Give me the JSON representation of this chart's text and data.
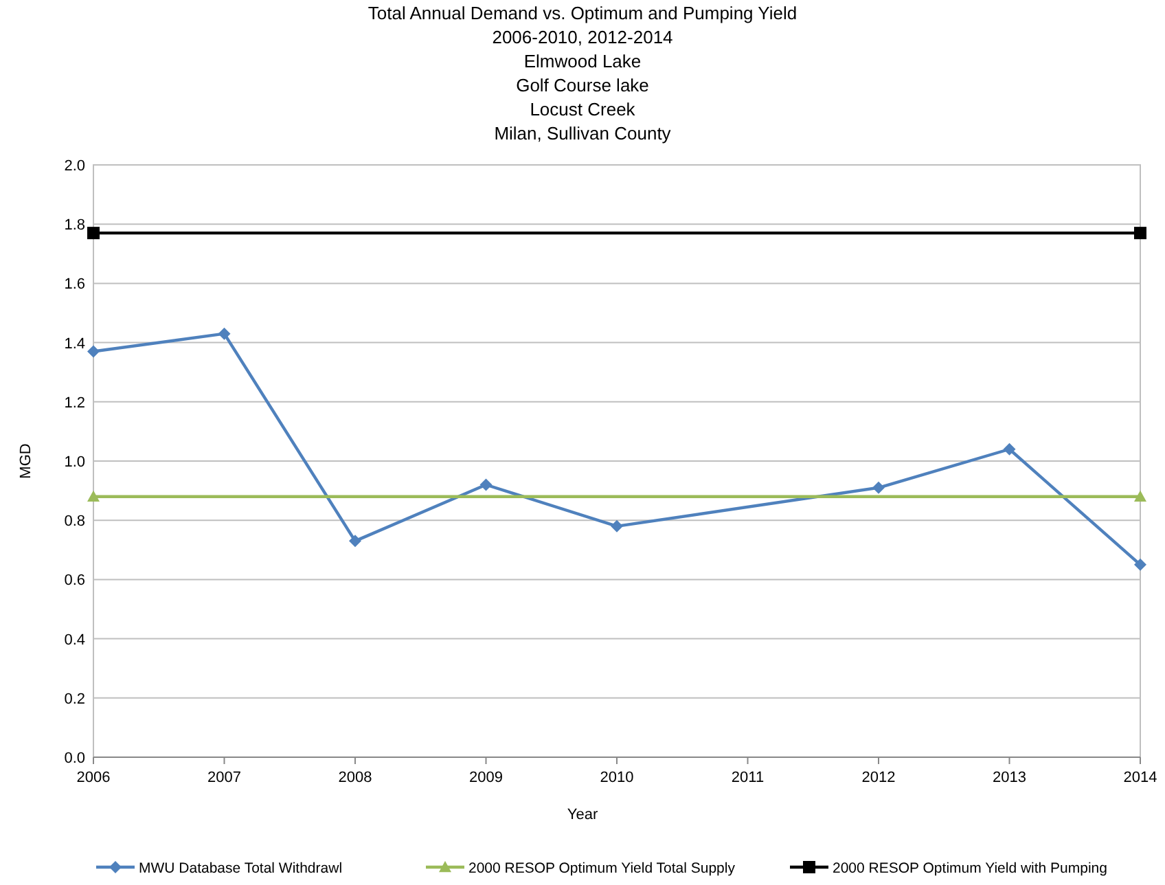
{
  "chart_data": {
    "type": "line",
    "title": "Total Annual Demand vs. Optimum and Pumping Yield\n2006-2010, 2012-2014\nElmwood Lake\nGolf Course lake\nLocust Creek\nMilan, Sullivan County",
    "xlabel": "Year",
    "ylabel": "MGD",
    "xlim": [
      2006,
      2014
    ],
    "xticks": [
      2006,
      2007,
      2008,
      2009,
      2010,
      2011,
      2012,
      2013,
      2014
    ],
    "ylim": [
      0,
      2
    ],
    "yticks": [
      {
        "value": 0,
        "label": "0.0"
      },
      {
        "value": 0.2,
        "label": "0.2"
      },
      {
        "value": 0.4,
        "label": "0.4"
      },
      {
        "value": 0.6,
        "label": "0.6"
      },
      {
        "value": 0.8,
        "label": "0.8"
      },
      {
        "value": 1,
        "label": "1.0"
      },
      {
        "value": 1.2,
        "label": "1.2"
      },
      {
        "value": 1.4,
        "label": "1.4"
      },
      {
        "value": 1.6,
        "label": "1.6"
      },
      {
        "value": 1.8,
        "label": "1.8"
      },
      {
        "value": 2,
        "label": "2.0"
      }
    ],
    "grid": "y",
    "legend": "bottom",
    "series": [
      {
        "name": "MWU Database Total Withdrawl",
        "color": "#4f81bd",
        "marker": "diamond",
        "x": [
          2006,
          2007,
          2008,
          2009,
          2010,
          2012,
          2013,
          2014
        ],
        "values": [
          1.37,
          1.43,
          0.73,
          0.92,
          0.78,
          0.91,
          1.04,
          0.65
        ]
      },
      {
        "name": "2000 RESOP Optimum Yield Total Supply",
        "color": "#9bbb59",
        "marker": "triangle",
        "x": [
          2006,
          2014
        ],
        "values": [
          0.88,
          0.88
        ]
      },
      {
        "name": "2000 RESOP Optimum Yield with Pumping",
        "color": "#000000",
        "marker": "square",
        "x": [
          2006,
          2014
        ],
        "values": [
          1.77,
          1.77
        ]
      }
    ]
  }
}
